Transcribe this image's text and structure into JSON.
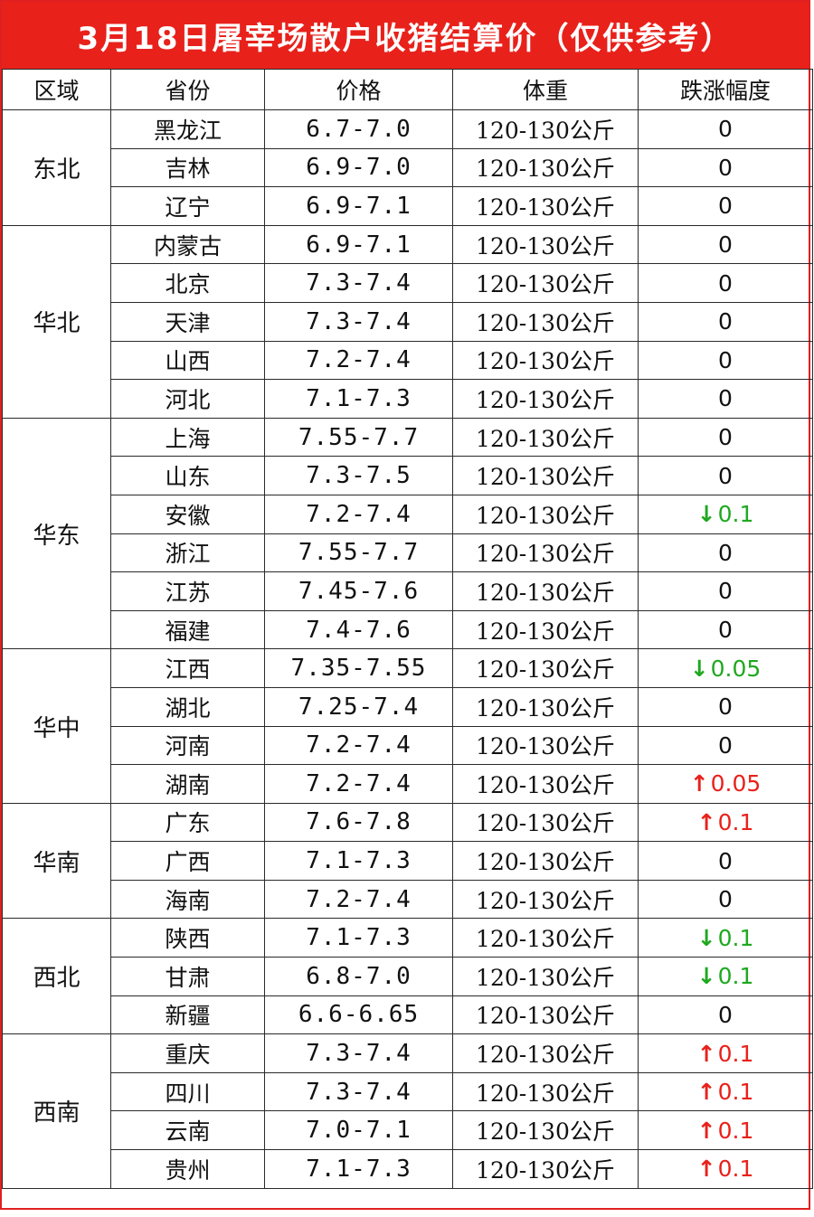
{
  "title": "3月18日屠宰场散户收猪结算价（仅供参考）",
  "headers": {
    "region": "区域",
    "province": "省份",
    "price": "价格",
    "weight": "体重",
    "change": "跌涨幅度"
  },
  "colors": {
    "title_bg": "#e8211b",
    "up": "#e8211b",
    "down": "#1fa81f"
  },
  "groups": [
    {
      "region": "东北",
      "rows": [
        {
          "province": "黑龙江",
          "price": "6.7-7.0",
          "weight": "120-130公斤",
          "change": "0",
          "trend": "none"
        },
        {
          "province": "吉林",
          "price": "6.9-7.0",
          "weight": "120-130公斤",
          "change": "0",
          "trend": "none"
        },
        {
          "province": "辽宁",
          "price": "6.9-7.1",
          "weight": "120-130公斤",
          "change": "0",
          "trend": "none"
        }
      ]
    },
    {
      "region": "华北",
      "rows": [
        {
          "province": "内蒙古",
          "price": "6.9-7.1",
          "weight": "120-130公斤",
          "change": "0",
          "trend": "none"
        },
        {
          "province": "北京",
          "price": "7.3-7.4",
          "weight": "120-130公斤",
          "change": "0",
          "trend": "none"
        },
        {
          "province": "天津",
          "price": "7.3-7.4",
          "weight": "120-130公斤",
          "change": "0",
          "trend": "none"
        },
        {
          "province": "山西",
          "price": "7.2-7.4",
          "weight": "120-130公斤",
          "change": "0",
          "trend": "none"
        },
        {
          "province": "河北",
          "price": "7.1-7.3",
          "weight": "120-130公斤",
          "change": "0",
          "trend": "none"
        }
      ]
    },
    {
      "region": "华东",
      "rows": [
        {
          "province": "上海",
          "price": "7.55-7.7",
          "weight": "120-130公斤",
          "change": "0",
          "trend": "none"
        },
        {
          "province": "山东",
          "price": "7.3-7.5",
          "weight": "120-130公斤",
          "change": "0",
          "trend": "none"
        },
        {
          "province": "安徽",
          "price": "7.2-7.4",
          "weight": "120-130公斤",
          "change": "0.1",
          "trend": "down"
        },
        {
          "province": "浙江",
          "price": "7.55-7.7",
          "weight": "120-130公斤",
          "change": "0",
          "trend": "none"
        },
        {
          "province": "江苏",
          "price": "7.45-7.6",
          "weight": "120-130公斤",
          "change": "0",
          "trend": "none"
        },
        {
          "province": "福建",
          "price": "7.4-7.6",
          "weight": "120-130公斤",
          "change": "0",
          "trend": "none"
        }
      ]
    },
    {
      "region": "华中",
      "rows": [
        {
          "province": "江西",
          "price": "7.35-7.55",
          "weight": "120-130公斤",
          "change": "0.05",
          "trend": "down"
        },
        {
          "province": "湖北",
          "price": "7.25-7.4",
          "weight": "120-130公斤",
          "change": "0",
          "trend": "none"
        },
        {
          "province": "河南",
          "price": "7.2-7.4",
          "weight": "120-130公斤",
          "change": "0",
          "trend": "none"
        },
        {
          "province": "湖南",
          "price": "7.2-7.4",
          "weight": "120-130公斤",
          "change": "0.05",
          "trend": "up"
        }
      ]
    },
    {
      "region": "华南",
      "rows": [
        {
          "province": "广东",
          "price": "7.6-7.8",
          "weight": "120-130公斤",
          "change": "0.1",
          "trend": "up"
        },
        {
          "province": "广西",
          "price": "7.1-7.3",
          "weight": "120-130公斤",
          "change": "0",
          "trend": "none"
        },
        {
          "province": "海南",
          "price": "7.2-7.4",
          "weight": "120-130公斤",
          "change": "0",
          "trend": "none"
        }
      ]
    },
    {
      "region": "西北",
      "rows": [
        {
          "province": "陕西",
          "price": "7.1-7.3",
          "weight": "120-130公斤",
          "change": "0.1",
          "trend": "down"
        },
        {
          "province": "甘肃",
          "price": "6.8-7.0",
          "weight": "120-130公斤",
          "change": "0.1",
          "trend": "down"
        },
        {
          "province": "新疆",
          "price": "6.6-6.65",
          "weight": "120-130公斤",
          "change": "0",
          "trend": "none"
        }
      ]
    },
    {
      "region": "西南",
      "rows": [
        {
          "province": "重庆",
          "price": "7.3-7.4",
          "weight": "120-130公斤",
          "change": "0.1",
          "trend": "up"
        },
        {
          "province": "四川",
          "price": "7.3-7.4",
          "weight": "120-130公斤",
          "change": "0.1",
          "trend": "up"
        },
        {
          "province": "云南",
          "price": "7.0-7.1",
          "weight": "120-130公斤",
          "change": "0.1",
          "trend": "up"
        },
        {
          "province": "贵州",
          "price": "7.1-7.3",
          "weight": "120-130公斤",
          "change": "0.1",
          "trend": "up"
        }
      ]
    }
  ]
}
